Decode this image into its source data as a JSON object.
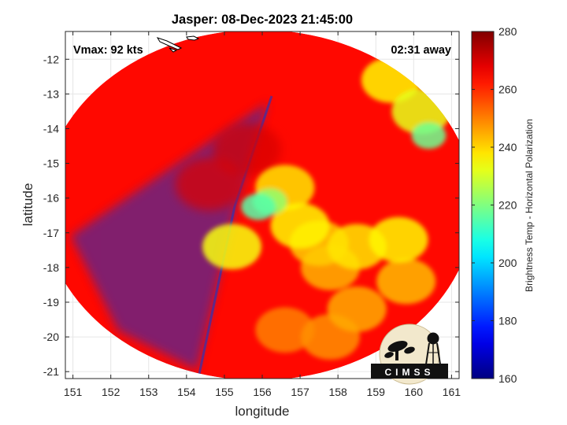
{
  "chart_data": {
    "type": "heatmap",
    "title": "Jasper: 08-Dec-2023 21:45:00",
    "xlabel": "longitude",
    "ylabel": "latitude",
    "xlim": [
      150.8,
      161.2
    ],
    "ylim": [
      -21.2,
      -11.2
    ],
    "xticks": [
      151,
      152,
      153,
      154,
      155,
      156,
      157,
      158,
      159,
      160,
      161
    ],
    "yticks": [
      -12,
      -13,
      -14,
      -15,
      -16,
      -17,
      -18,
      -19,
      -20,
      -21
    ],
    "annotations": {
      "vmax": "Vmax: 92 kts",
      "time_away": "02:31 away"
    },
    "colorbar": {
      "label": "Brightness Temp - Horizontal Polarization",
      "min": 160,
      "max": 280,
      "ticks": [
        160,
        180,
        200,
        220,
        240,
        260,
        280
      ],
      "colormap": "jet"
    },
    "swath": {
      "center_lon": 155.9,
      "center_lat": -16.2,
      "radius_lon": 5.7,
      "radius_lat": 5.05
    },
    "background_value": 264,
    "features": [
      {
        "lon": 155.9,
        "lat": -16.25,
        "value": 215
      },
      {
        "lon": 156.2,
        "lat": -16.1,
        "value": 222
      },
      {
        "lon": 156.6,
        "lat": -15.7,
        "value": 238
      },
      {
        "lon": 157.0,
        "lat": -16.8,
        "value": 236
      },
      {
        "lon": 157.5,
        "lat": -17.3,
        "value": 241
      },
      {
        "lon": 158.5,
        "lat": -17.4,
        "value": 238
      },
      {
        "lon": 159.6,
        "lat": -17.2,
        "value": 236
      },
      {
        "lon": 157.8,
        "lat": -18.0,
        "value": 244
      },
      {
        "lon": 155.2,
        "lat": -17.4,
        "value": 234
      },
      {
        "lon": 158.5,
        "lat": -19.2,
        "value": 245
      },
      {
        "lon": 159.8,
        "lat": -18.4,
        "value": 243
      },
      {
        "lon": 160.4,
        "lat": -14.2,
        "value": 218
      },
      {
        "lon": 160.2,
        "lat": -13.5,
        "value": 232
      },
      {
        "lon": 159.4,
        "lat": -12.6,
        "value": 236
      },
      {
        "lon": 156.6,
        "lat": -19.8,
        "value": 250
      },
      {
        "lon": 157.8,
        "lat": -20.0,
        "value": 248
      }
    ],
    "cold_features": [
      {
        "lon": 155.6,
        "lat": -14.6,
        "value": 270
      },
      {
        "lon": 154.6,
        "lat": -15.6,
        "value": 269
      }
    ]
  },
  "logo": {
    "text": "CIMSS"
  },
  "colors": {
    "axes": "#262626",
    "grid": "#e6e6e6",
    "swath_base": "#1f45e2"
  }
}
